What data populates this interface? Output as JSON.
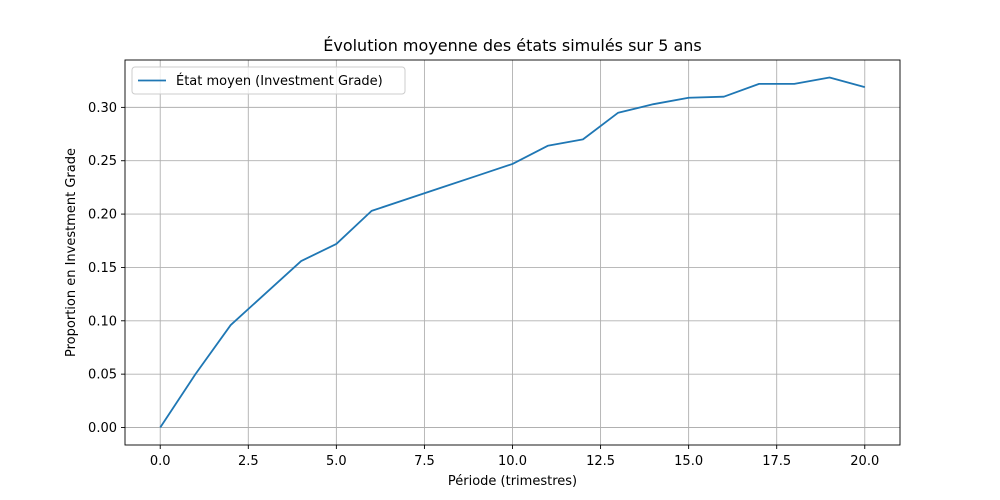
{
  "chart_data": {
    "type": "line",
    "title": "Évolution moyenne des états simulés sur 5 ans",
    "xlabel": "Période (trimestres)",
    "ylabel": "Proportion en Investment Grade",
    "xlim": [
      -1,
      21
    ],
    "ylim": [
      -0.0164,
      0.3444
    ],
    "xticks": [
      0.0,
      2.5,
      5.0,
      7.5,
      10.0,
      12.5,
      15.0,
      17.5,
      20.0
    ],
    "xtick_labels": [
      "0.0",
      "2.5",
      "5.0",
      "7.5",
      "10.0",
      "12.5",
      "15.0",
      "17.5",
      "20.0"
    ],
    "yticks": [
      0.0,
      0.05,
      0.1,
      0.15,
      0.2,
      0.25,
      0.3
    ],
    "ytick_labels": [
      "0.00",
      "0.05",
      "0.10",
      "0.15",
      "0.20",
      "0.25",
      "0.30"
    ],
    "grid": true,
    "legend_position": "top-left",
    "series": [
      {
        "name": "État moyen (Investment Grade)",
        "color": "#1f77b4",
        "x": [
          0,
          1,
          2,
          3,
          4,
          5,
          6,
          7,
          8,
          9,
          10,
          11,
          12,
          13,
          14,
          15,
          16,
          17,
          18,
          19,
          20
        ],
        "y": [
          0.0,
          0.05,
          0.096,
          0.126,
          0.156,
          0.172,
          0.203,
          0.214,
          0.225,
          0.236,
          0.247,
          0.264,
          0.27,
          0.295,
          0.303,
          0.309,
          0.31,
          0.322,
          0.322,
          0.328,
          0.319
        ]
      }
    ]
  }
}
